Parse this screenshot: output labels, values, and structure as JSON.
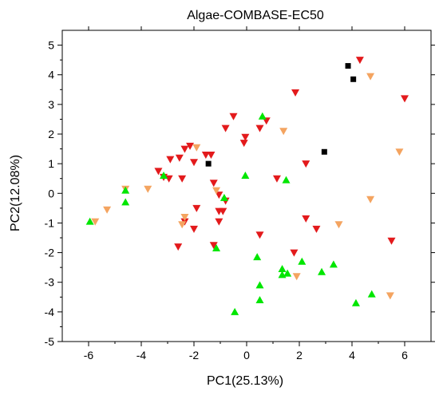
{
  "chart_data": {
    "type": "scatter",
    "title": "Algae-COMBASE-EC50",
    "xlabel": "PC1(25.13%)",
    "ylabel": "PC2(12.08%)",
    "xlim": [
      -7,
      7
    ],
    "ylim": [
      -5,
      5.5
    ],
    "xticks": [
      -6,
      -4,
      -2,
      0,
      2,
      4,
      6
    ],
    "yticks": [
      -5,
      -4,
      -3,
      -2,
      -1,
      0,
      1,
      2,
      3,
      4,
      5
    ],
    "xtick_labels": [
      "-6",
      "-4",
      "-2",
      "0",
      "2",
      "4",
      "6"
    ],
    "ytick_labels": [
      "-5",
      "-4",
      "-3",
      "-2",
      "-1",
      "0",
      "1",
      "2",
      "3",
      "4",
      "5"
    ],
    "grid": false,
    "legend": "none",
    "series": [
      {
        "marker": "square",
        "color": "#000000",
        "points": [
          {
            "x": 3.85,
            "y": 4.3
          },
          {
            "x": 4.05,
            "y": 3.85
          },
          {
            "x": 2.95,
            "y": 1.4
          },
          {
            "x": -1.45,
            "y": 1.0
          }
        ]
      },
      {
        "marker": "triangle-down",
        "color": "#e31a1c",
        "points": [
          {
            "x": 4.3,
            "y": 4.5
          },
          {
            "x": 6.0,
            "y": 3.2
          },
          {
            "x": 1.85,
            "y": 3.4
          },
          {
            "x": -0.5,
            "y": 2.6
          },
          {
            "x": 0.75,
            "y": 2.45
          },
          {
            "x": 0.5,
            "y": 2.2
          },
          {
            "x": -0.8,
            "y": 2.2
          },
          {
            "x": -0.05,
            "y": 1.9
          },
          {
            "x": -0.1,
            "y": 1.7
          },
          {
            "x": -2.15,
            "y": 1.6
          },
          {
            "x": -2.35,
            "y": 1.5
          },
          {
            "x": -1.55,
            "y": 1.3
          },
          {
            "x": -1.35,
            "y": 1.3
          },
          {
            "x": -2.55,
            "y": 1.2
          },
          {
            "x": -2.9,
            "y": 1.15
          },
          {
            "x": -2.0,
            "y": 1.05
          },
          {
            "x": -3.35,
            "y": 0.75
          },
          {
            "x": -3.15,
            "y": 0.55
          },
          {
            "x": -2.95,
            "y": 0.5
          },
          {
            "x": -2.45,
            "y": 0.5
          },
          {
            "x": -1.25,
            "y": 0.35
          },
          {
            "x": 1.15,
            "y": 0.5
          },
          {
            "x": 2.25,
            "y": 1.0
          },
          {
            "x": -1.05,
            "y": -0.05
          },
          {
            "x": -0.8,
            "y": -0.25
          },
          {
            "x": -1.9,
            "y": -0.5
          },
          {
            "x": -1.05,
            "y": -0.6
          },
          {
            "x": -0.9,
            "y": -0.6
          },
          {
            "x": -1.05,
            "y": -0.95
          },
          {
            "x": -2.35,
            "y": -0.95
          },
          {
            "x": -2.0,
            "y": -1.2
          },
          {
            "x": 0.5,
            "y": -1.4
          },
          {
            "x": 2.25,
            "y": -0.85
          },
          {
            "x": 2.65,
            "y": -1.2
          },
          {
            "x": 5.5,
            "y": -1.6
          },
          {
            "x": -2.6,
            "y": -1.8
          },
          {
            "x": -1.25,
            "y": -1.75
          },
          {
            "x": 1.8,
            "y": -2.0
          }
        ]
      },
      {
        "marker": "triangle-down",
        "color": "#f4a460",
        "points": [
          {
            "x": 4.7,
            "y": 3.95
          },
          {
            "x": 1.4,
            "y": 2.1
          },
          {
            "x": 5.8,
            "y": 1.4
          },
          {
            "x": -1.9,
            "y": 1.55
          },
          {
            "x": -3.75,
            "y": 0.15
          },
          {
            "x": -4.6,
            "y": 0.15
          },
          {
            "x": -1.15,
            "y": 0.1
          },
          {
            "x": -5.3,
            "y": -0.55
          },
          {
            "x": -5.75,
            "y": -0.95
          },
          {
            "x": -2.35,
            "y": -0.8
          },
          {
            "x": -2.45,
            "y": -1.05
          },
          {
            "x": 4.7,
            "y": -0.2
          },
          {
            "x": 3.5,
            "y": -1.05
          },
          {
            "x": 1.9,
            "y": -2.8
          },
          {
            "x": 5.45,
            "y": -3.45
          }
        ]
      },
      {
        "marker": "triangle-up",
        "color": "#00e600",
        "points": [
          {
            "x": 0.6,
            "y": 2.6
          },
          {
            "x": -3.15,
            "y": 0.6
          },
          {
            "x": -0.05,
            "y": 0.6
          },
          {
            "x": 1.5,
            "y": 0.45
          },
          {
            "x": -4.6,
            "y": 0.1
          },
          {
            "x": -4.6,
            "y": -0.3
          },
          {
            "x": -5.95,
            "y": -0.95
          },
          {
            "x": -0.85,
            "y": -0.15
          },
          {
            "x": -1.15,
            "y": -1.85
          },
          {
            "x": 0.4,
            "y": -2.15
          },
          {
            "x": 2.1,
            "y": -2.3
          },
          {
            "x": 3.3,
            "y": -2.4
          },
          {
            "x": 1.35,
            "y": -2.55
          },
          {
            "x": 1.55,
            "y": -2.7
          },
          {
            "x": 1.35,
            "y": -2.75
          },
          {
            "x": 2.85,
            "y": -2.65
          },
          {
            "x": 0.5,
            "y": -3.1
          },
          {
            "x": 4.75,
            "y": -3.4
          },
          {
            "x": 0.5,
            "y": -3.6
          },
          {
            "x": 4.15,
            "y": -3.7
          },
          {
            "x": -0.45,
            "y": -4.0
          }
        ]
      }
    ]
  }
}
